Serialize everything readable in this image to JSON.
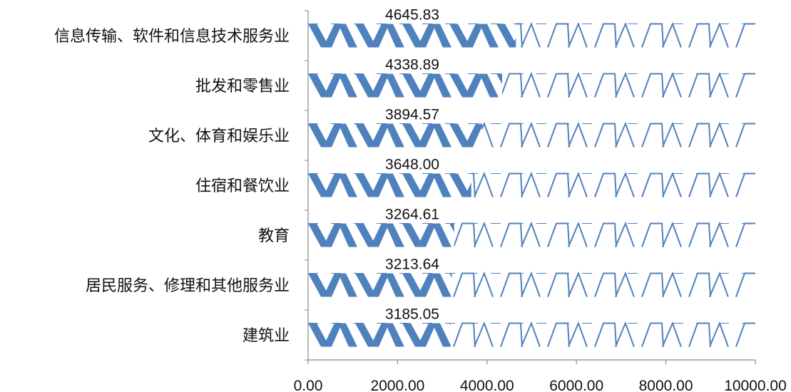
{
  "chart_data": {
    "type": "bar",
    "orientation": "horizontal",
    "categories": [
      "信息传输、软件和信息技术服务业",
      "批发和零售业",
      "文化、体育和娱乐业",
      "住宿和餐饮业",
      "教育",
      "居民服务、修理和其他服务业",
      "建筑业"
    ],
    "values": [
      4645.83,
      4338.89,
      3894.57,
      3648.0,
      3264.61,
      3213.64,
      3185.05
    ],
    "data_labels": [
      "4645.83",
      "4338.89",
      "3894.57",
      "3648.00",
      "3264.61",
      "3213.64",
      "3185.05"
    ],
    "x_ticks": [
      "0.00",
      "2000.00",
      "4000.00",
      "6000.00",
      "8000.00",
      "10000.00"
    ],
    "xlim": [
      0,
      10000
    ],
    "title": "",
    "xlabel": "",
    "ylabel": "",
    "grid": false,
    "legend": "none",
    "colors": {
      "bar": "#4f81bd",
      "axis": "#888888",
      "text": "#111111"
    }
  }
}
